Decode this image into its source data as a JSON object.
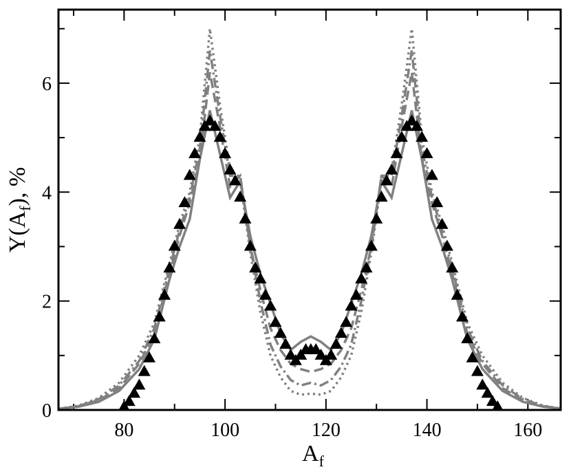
{
  "chart_data": {
    "type": "line",
    "xlabel": [
      "A",
      "f"
    ],
    "ylabel": [
      "Y(A",
      "f",
      "), %"
    ],
    "xlim": [
      67,
      166.5
    ],
    "ylim": [
      0,
      7.35
    ],
    "xticks": [
      80,
      100,
      120,
      140,
      160
    ],
    "xticks_minor": [
      70,
      90,
      110,
      130,
      150
    ],
    "yticks": [
      0,
      2,
      4,
      6
    ],
    "yticks_minor": [
      1,
      3,
      5,
      7
    ],
    "x": [
      67,
      71,
      75,
      79,
      83,
      86,
      89,
      91,
      93,
      95,
      97,
      99,
      101,
      103,
      105,
      107,
      109,
      111,
      113,
      115,
      117,
      119,
      121,
      123,
      125,
      127,
      129,
      131,
      133,
      135,
      137,
      139,
      141,
      143,
      145,
      148,
      151,
      155,
      159,
      163,
      167
    ],
    "series": [
      {
        "color": "#808080",
        "dash": "solid",
        "values": [
          0.02,
          0.06,
          0.15,
          0.35,
          0.75,
          1.3,
          2.4,
          3.0,
          3.5,
          4.6,
          5.5,
          4.7,
          3.9,
          4.2,
          3.2,
          2.5,
          1.95,
          1.4,
          1.1,
          1.25,
          1.35,
          1.25,
          1.1,
          1.4,
          1.95,
          2.5,
          3.2,
          4.2,
          3.9,
          4.7,
          5.5,
          4.6,
          3.5,
          3.0,
          2.4,
          1.3,
          0.75,
          0.35,
          0.15,
          0.06,
          0.02
        ]
      },
      {
        "color": "#808080",
        "dash": "dashed",
        "values": [
          0.02,
          0.07,
          0.18,
          0.4,
          0.85,
          1.4,
          2.5,
          3.2,
          3.8,
          4.6,
          6.2,
          5.2,
          4.1,
          4.3,
          3.0,
          2.2,
          1.5,
          1.1,
          0.85,
          0.75,
          0.7,
          0.75,
          0.85,
          1.1,
          1.5,
          2.2,
          3.0,
          4.3,
          4.1,
          5.2,
          6.2,
          4.6,
          3.8,
          3.2,
          2.5,
          1.4,
          0.85,
          0.4,
          0.18,
          0.07,
          0.02
        ]
      },
      {
        "color": "#808080",
        "dash": "dashdot",
        "values": [
          0.02,
          0.07,
          0.2,
          0.45,
          0.9,
          1.5,
          2.6,
          3.3,
          3.9,
          4.8,
          6.6,
          5.4,
          4.3,
          4.3,
          3.0,
          2.0,
          1.2,
          0.8,
          0.55,
          0.45,
          0.5,
          0.45,
          0.55,
          0.8,
          1.2,
          2.0,
          3.0,
          4.3,
          4.3,
          5.4,
          6.6,
          4.8,
          3.9,
          3.3,
          2.6,
          1.5,
          0.9,
          0.45,
          0.2,
          0.07,
          0.02
        ]
      },
      {
        "color": "#808080",
        "dash": "dotted",
        "values": [
          0.02,
          0.08,
          0.22,
          0.5,
          1.0,
          1.6,
          2.7,
          3.4,
          4.0,
          5.0,
          7.0,
          5.6,
          4.4,
          4.2,
          2.9,
          1.8,
          1.0,
          0.6,
          0.35,
          0.28,
          0.3,
          0.28,
          0.35,
          0.6,
          1.0,
          1.8,
          2.9,
          4.2,
          4.4,
          5.6,
          7.0,
          5.0,
          4.0,
          3.4,
          2.7,
          1.6,
          1.0,
          0.5,
          0.22,
          0.08,
          0.02
        ]
      }
    ],
    "points": {
      "color": "#000000",
      "marker": "triangle",
      "x": [
        80,
        81,
        82,
        83,
        84,
        85,
        86,
        87,
        88,
        89,
        90,
        91,
        92,
        93,
        94,
        95,
        96,
        97,
        98,
        99,
        100,
        101,
        102,
        103,
        104,
        105,
        106,
        107,
        108,
        109,
        110,
        111,
        112,
        113,
        114,
        115,
        116,
        117,
        118,
        119,
        120,
        121,
        122,
        123,
        124,
        125,
        126,
        127,
        128,
        129,
        130,
        131,
        132,
        133,
        134,
        135,
        136,
        137,
        138,
        139,
        140,
        141,
        142,
        143,
        144,
        145,
        146,
        147,
        148,
        149,
        150,
        151,
        152,
        153,
        154
      ],
      "values": [
        0.05,
        0.15,
        0.3,
        0.45,
        0.7,
        0.95,
        1.3,
        1.7,
        2.1,
        2.6,
        3.0,
        3.4,
        3.8,
        4.3,
        4.7,
        5.0,
        5.2,
        5.3,
        5.2,
        5.0,
        4.7,
        4.4,
        4.2,
        3.9,
        3.5,
        3.0,
        2.6,
        2.4,
        2.1,
        1.9,
        1.6,
        1.4,
        1.2,
        1.0,
        0.9,
        1.0,
        1.1,
        1.1,
        1.1,
        1.0,
        0.9,
        1.0,
        1.2,
        1.4,
        1.6,
        1.9,
        2.1,
        2.4,
        2.6,
        3.0,
        3.5,
        3.9,
        4.2,
        4.4,
        4.7,
        5.0,
        5.2,
        5.3,
        5.2,
        5.0,
        4.7,
        4.3,
        3.8,
        3.4,
        3.0,
        2.6,
        2.1,
        1.7,
        1.3,
        0.95,
        0.7,
        0.45,
        0.3,
        0.15,
        0.05
      ]
    }
  }
}
